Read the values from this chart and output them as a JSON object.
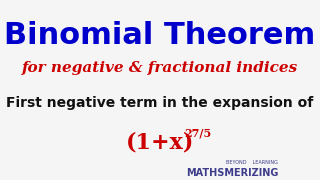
{
  "background_color": "#f5f5f5",
  "title": "Binomial Theorem",
  "title_color": "#0000cc",
  "title_fontsize": 22,
  "title_fontstyle": "bold",
  "subtitle": "for negative & fractional indices",
  "subtitle_color": "#cc0000",
  "subtitle_fontsize": 11,
  "subtitle_fontstyle": "italic",
  "body_text": "First negative term in the expansion of",
  "body_color": "#111111",
  "body_fontsize": 10,
  "expression": "(1+x)",
  "exponent": "27/5",
  "expression_color": "#cc0000",
  "expression_fontsize": 16,
  "exponent_fontsize": 8,
  "watermark_main": "MATHSMERIZING",
  "watermark_sub": "BEYOND    LEARNING",
  "watermark_color": "#3d3d8c"
}
